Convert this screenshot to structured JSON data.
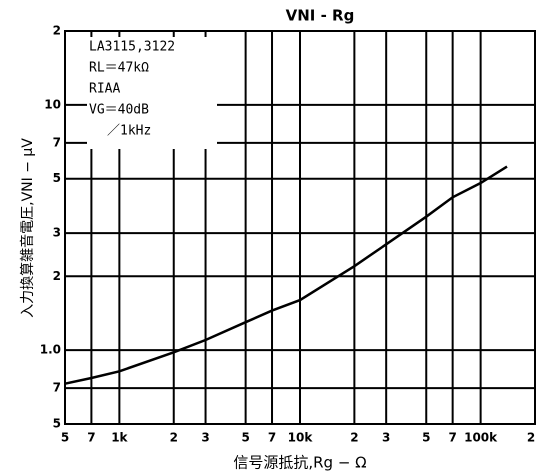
{
  "chart_data": {
    "type": "line",
    "title": "VNI - Rg",
    "x_label": "信号源抵抗,Rg − Ω",
    "y_label": "入力換算雑音電圧,VNI − μV",
    "annotations": [
      "LA3115,3122",
      "RL＝47kΩ",
      "RIAA",
      "VG＝40dB",
      "／1kHz"
    ],
    "xscale": "log",
    "yscale": "log",
    "grid": true,
    "xlim": [
      500,
      200000
    ],
    "ylim": [
      0.5,
      20
    ],
    "xticks": [
      {
        "value": 500,
        "label": "5"
      },
      {
        "value": 700,
        "label": "7"
      },
      {
        "value": 1000,
        "label": "1k"
      },
      {
        "value": 2000,
        "label": "2"
      },
      {
        "value": 3000,
        "label": "3"
      },
      {
        "value": 5000,
        "label": "5"
      },
      {
        "value": 7000,
        "label": "7"
      },
      {
        "value": 10000,
        "label": "10k"
      },
      {
        "value": 20000,
        "label": "2"
      },
      {
        "value": 30000,
        "label": "3"
      },
      {
        "value": 50000,
        "label": "5"
      },
      {
        "value": 70000,
        "label": "7"
      },
      {
        "value": 100000,
        "label": "100k"
      },
      {
        "value": 200000,
        "label": "2"
      }
    ],
    "yticks": [
      {
        "value": 20,
        "label": "2"
      },
      10,
      7,
      5,
      3,
      2,
      {
        "value": 1,
        "label": "1.0"
      },
      {
        "value": 0.7,
        "label": "7"
      },
      {
        "value": 0.5,
        "label": "5"
      }
    ],
    "x": [
      500,
      700,
      1000,
      2000,
      3000,
      5000,
      7000,
      10000,
      20000,
      30000,
      50000,
      70000,
      100000,
      140000
    ],
    "series": [
      {
        "color": "#000000",
        "values": [
          0.73,
          0.77,
          0.82,
          0.98,
          1.1,
          1.3,
          1.45,
          1.6,
          2.2,
          2.7,
          3.5,
          4.2,
          4.8,
          5.6
        ]
      }
    ]
  }
}
